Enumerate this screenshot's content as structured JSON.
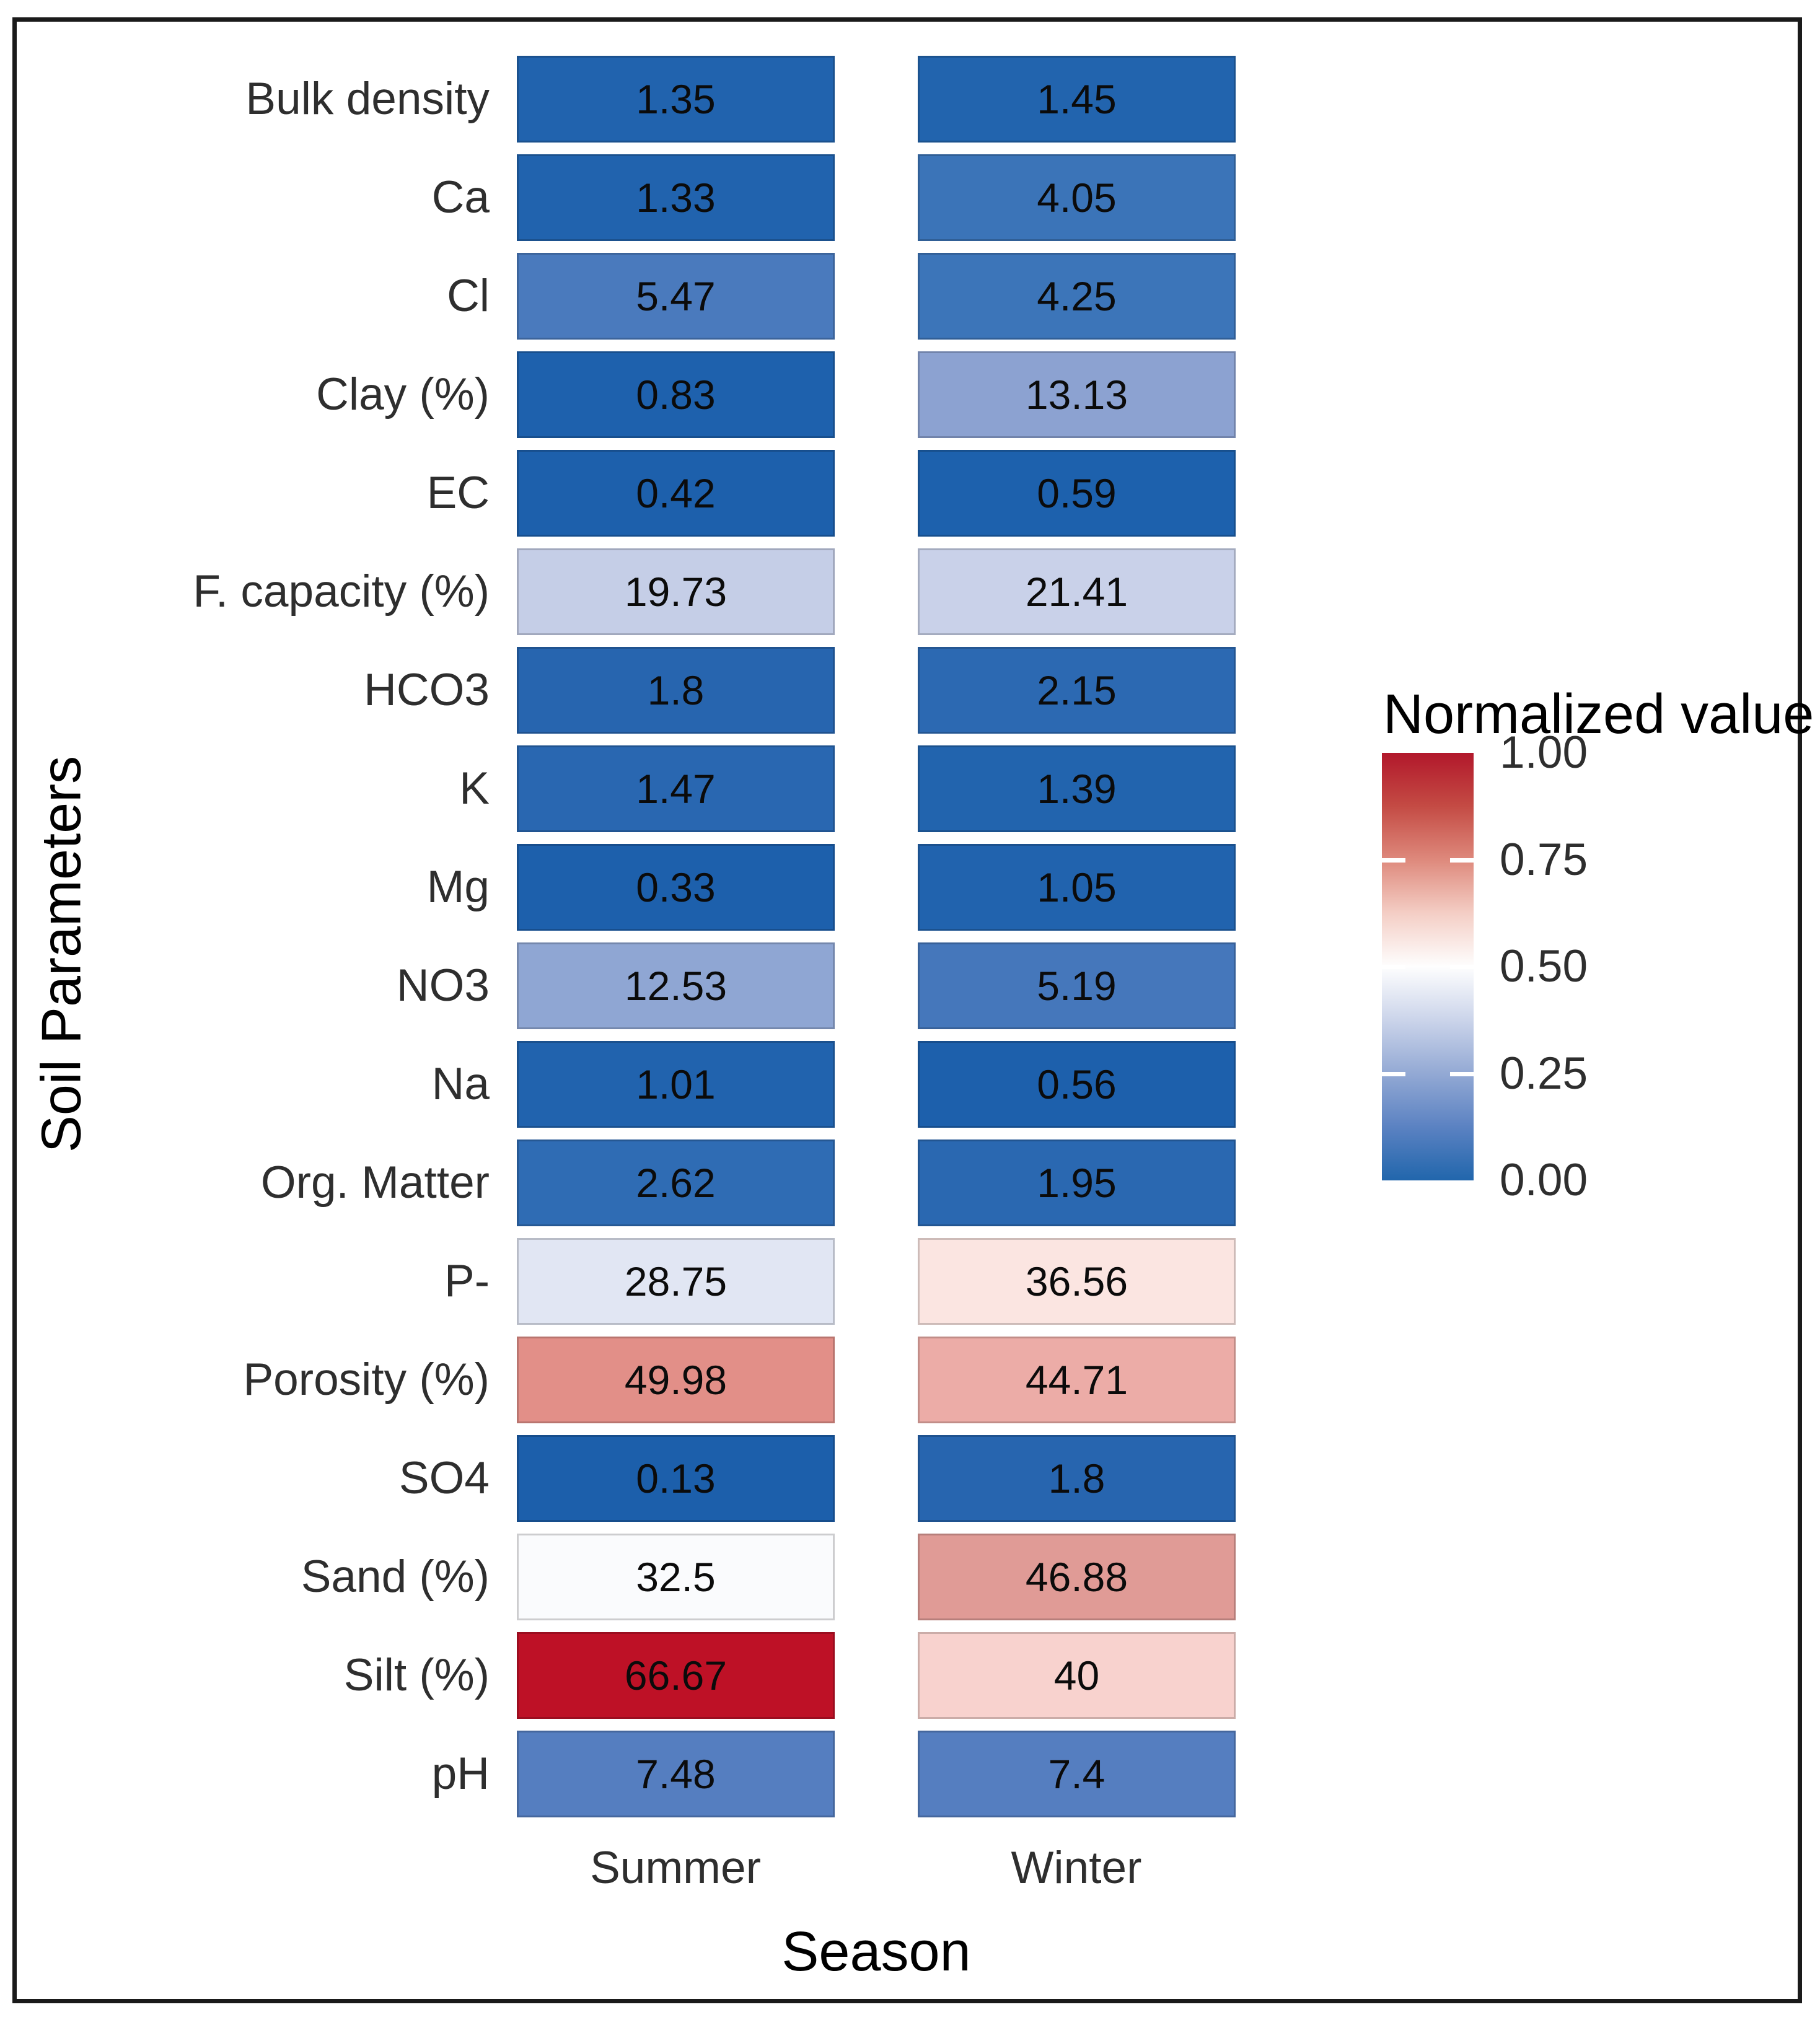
{
  "chart_data": {
    "type": "heatmap",
    "title": "",
    "xlabel": "Season",
    "ylabel": "Soil Parameters",
    "x_categories": [
      "Summer",
      "Winter"
    ],
    "y_categories": [
      "Bulk density",
      "Ca",
      "Cl",
      "Clay (%)",
      "EC",
      "F. capacity (%)",
      "HCO3",
      "K",
      "Mg",
      "NO3",
      "Na",
      "Org. Matter",
      "P-",
      "Porosity (%)",
      "SO4",
      "Sand (%)",
      "Silt (%)",
      "pH"
    ],
    "series": [
      {
        "name": "Summer",
        "values": [
          1.35,
          1.33,
          5.47,
          0.83,
          0.42,
          19.73,
          1.8,
          1.47,
          0.33,
          12.53,
          1.01,
          2.62,
          28.75,
          49.98,
          0.13,
          32.5,
          66.67,
          7.48
        ]
      },
      {
        "name": "Winter",
        "values": [
          1.45,
          4.05,
          4.25,
          13.13,
          0.59,
          21.41,
          2.15,
          1.39,
          1.05,
          5.19,
          0.56,
          1.95,
          36.56,
          44.71,
          1.8,
          46.88,
          40,
          7.4
        ]
      }
    ],
    "colorbar": {
      "title": "Normalized value",
      "ticks": [
        "1.00",
        "0.75",
        "0.50",
        "0.25",
        "0.00"
      ],
      "range": [
        0,
        1
      ],
      "position": "right",
      "orientation": "vertical"
    },
    "grid": false
  },
  "axes": {
    "x_title": "Season",
    "y_title": "Soil Parameters",
    "x_tick_labels": [
      "Summer",
      "Winter"
    ]
  },
  "rows": [
    {
      "label": "Bulk density",
      "summer_value": "1.35",
      "summer_color": "#2163AE",
      "winter_value": "1.45",
      "winter_color": "#2264AE"
    },
    {
      "label": "Ca",
      "summer_value": "1.33",
      "summer_color": "#2163AE",
      "winter_value": "4.05",
      "winter_color": "#3B74B8"
    },
    {
      "label": "Cl",
      "summer_value": "5.47",
      "summer_color": "#4A7ABD",
      "winter_value": "4.25",
      "winter_color": "#3C75B9"
    },
    {
      "label": "Clay (%)",
      "summer_value": "0.83",
      "summer_color": "#1E61AD",
      "winter_value": "13.13",
      "winter_color": "#8CA2D1"
    },
    {
      "label": "EC",
      "summer_value": "0.42",
      "summer_color": "#1D60AC",
      "winter_value": "0.59",
      "winter_color": "#1D61AD"
    },
    {
      "label": "F. capacity (%)",
      "summer_value": "19.73",
      "summer_color": "#C5CEE7",
      "winter_value": "21.41",
      "winter_color": "#C9D1E9"
    },
    {
      "label": "HCO3",
      "summer_value": "1.8",
      "summer_color": "#2765AF",
      "winter_value": "2.15",
      "winter_color": "#2C69B2"
    },
    {
      "label": "K",
      "summer_value": "1.47",
      "summer_color": "#2967B1",
      "winter_value": "1.39",
      "winter_color": "#2264AE"
    },
    {
      "label": "Mg",
      "summer_value": "0.33",
      "summer_color": "#1D60AC",
      "winter_value": "1.05",
      "winter_color": "#2163AE"
    },
    {
      "label": "NO3",
      "summer_value": "12.53",
      "summer_color": "#8FA6D3",
      "winter_value": "5.19",
      "winter_color": "#4577BB"
    },
    {
      "label": "Na",
      "summer_value": "1.01",
      "summer_color": "#2163AE",
      "winter_value": "0.56",
      "winter_color": "#1D60AC"
    },
    {
      "label": "Org. Matter",
      "summer_value": "2.62",
      "summer_color": "#2F6CB4",
      "winter_value": "1.95",
      "winter_color": "#2A68B1"
    },
    {
      "label": "P-",
      "summer_value": "28.75",
      "summer_color": "#E1E6F3",
      "winter_value": "36.56",
      "winter_color": "#FBE5E1"
    },
    {
      "label": "Porosity (%)",
      "summer_value": "49.98",
      "summer_color": "#E28F88",
      "winter_value": "44.71",
      "winter_color": "#ECACA7"
    },
    {
      "label": "SO4",
      "summer_value": "0.13",
      "summer_color": "#1C5FAB",
      "winter_value": "1.8",
      "winter_color": "#2765AF"
    },
    {
      "label": "Sand (%)",
      "summer_value": "32.5",
      "summer_color": "#FAFBFD",
      "winter_value": "46.88",
      "winter_color": "#E09B96"
    },
    {
      "label": "Silt (%)",
      "summer_value": "66.67",
      "summer_color": "#BE1126",
      "winter_value": "40",
      "winter_color": "#F8D2CE"
    },
    {
      "label": "pH",
      "summer_value": "7.48",
      "summer_color": "#557EC0",
      "winter_value": "7.4",
      "winter_color": "#557EC0"
    }
  ],
  "legend": {
    "title": "Normalized value",
    "tick_labels": [
      "1.00",
      "0.75",
      "0.50",
      "0.25",
      "0.00"
    ],
    "gradient_stops_top_to_bottom": [
      "#B2182B",
      "#C44B44",
      "#DE897C",
      "#F4CEC5",
      "#FEFEFE",
      "#CBD4EA",
      "#93A9D4",
      "#5B82C2",
      "#2166AC"
    ]
  },
  "colors": {
    "frame_border": "#1a1a1a",
    "background": "#ffffff",
    "cell_text": "#0b0b0b",
    "axis_text": "#2e2e2e",
    "title_text": "#000000"
  }
}
